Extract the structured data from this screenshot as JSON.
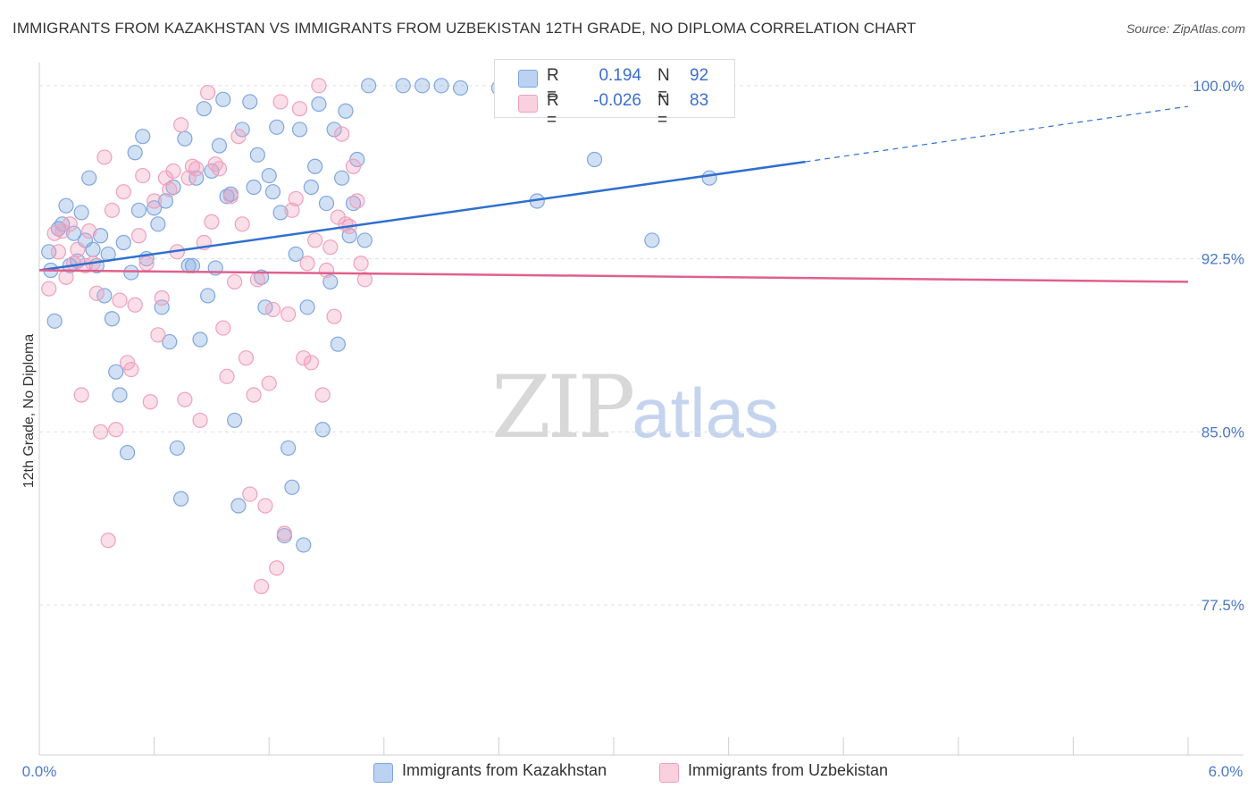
{
  "title": "IMMIGRANTS FROM KAZAKHSTAN VS IMMIGRANTS FROM UZBEKISTAN 12TH GRADE, NO DIPLOMA CORRELATION CHART",
  "source": "Source: ZipAtlas.com",
  "watermark": {
    "zip": "ZIP",
    "atlas": "atlas"
  },
  "legend": {
    "r_label": "R =",
    "n_label": "N =",
    "series1": {
      "r": "0.194",
      "n": "92"
    },
    "series2": {
      "r": "-0.026",
      "n": "83"
    }
  },
  "chart_data": {
    "type": "scatter",
    "title": "IMMIGRANTS FROM KAZAKHSTAN VS IMMIGRANTS FROM UZBEKISTAN 12TH GRADE, NO DIPLOMA CORRELATION CHART",
    "xlabel": "",
    "ylabel": "12th Grade, No Diploma",
    "xlim": [
      0.0,
      6.0
    ],
    "ylim": [
      71.0,
      101.0
    ],
    "x_tick_labels": [
      "0.0%",
      "6.0%"
    ],
    "y_ticks": [
      77.5,
      85.0,
      92.5,
      100.0
    ],
    "y_tick_labels": [
      "77.5%",
      "85.0%",
      "92.5%",
      "100.0%"
    ],
    "grid": true,
    "legend_position": "top-center and bottom",
    "colors": {
      "series1": "#7ea6e0",
      "series2": "#f0a0bc",
      "line1": "#2f6fd0",
      "line2": "#e0608c"
    },
    "series": [
      {
        "name": "Immigrants from Kazakhstan",
        "trend": {
          "x": [
            0.0,
            4.0
          ],
          "y": [
            92.0,
            96.7
          ],
          "dashed_extension": {
            "x": [
              4.0,
              6.0
            ],
            "y": [
              96.7,
              99.1
            ]
          }
        },
        "points": [
          [
            0.05,
            92.8
          ],
          [
            0.06,
            92.0
          ],
          [
            0.08,
            89.8
          ],
          [
            0.1,
            93.8
          ],
          [
            0.12,
            94.0
          ],
          [
            0.14,
            94.8
          ],
          [
            0.16,
            92.2
          ],
          [
            0.18,
            93.6
          ],
          [
            0.2,
            92.4
          ],
          [
            0.22,
            94.5
          ],
          [
            0.24,
            93.3
          ],
          [
            0.26,
            96.0
          ],
          [
            0.28,
            92.9
          ],
          [
            0.3,
            92.2
          ],
          [
            0.32,
            93.5
          ],
          [
            0.34,
            90.9
          ],
          [
            0.36,
            92.7
          ],
          [
            0.38,
            89.9
          ],
          [
            0.4,
            87.6
          ],
          [
            0.42,
            86.6
          ],
          [
            0.44,
            93.2
          ],
          [
            0.46,
            84.1
          ],
          [
            0.48,
            91.9
          ],
          [
            0.5,
            97.1
          ],
          [
            0.52,
            94.6
          ],
          [
            0.54,
            97.8
          ],
          [
            0.56,
            92.5
          ],
          [
            0.6,
            94.7
          ],
          [
            0.62,
            94.0
          ],
          [
            0.64,
            90.4
          ],
          [
            0.66,
            95.0
          ],
          [
            0.68,
            88.9
          ],
          [
            0.7,
            95.6
          ],
          [
            0.72,
            84.3
          ],
          [
            0.74,
            82.1
          ],
          [
            0.76,
            97.7
          ],
          [
            0.78,
            92.2
          ],
          [
            0.8,
            92.2
          ],
          [
            0.82,
            96.0
          ],
          [
            0.84,
            89.0
          ],
          [
            0.86,
            99.0
          ],
          [
            0.88,
            90.9
          ],
          [
            0.9,
            96.3
          ],
          [
            0.92,
            92.1
          ],
          [
            0.94,
            97.4
          ],
          [
            0.96,
            99.4
          ],
          [
            0.98,
            95.2
          ],
          [
            1.0,
            95.3
          ],
          [
            1.02,
            85.5
          ],
          [
            1.04,
            81.8
          ],
          [
            1.06,
            98.1
          ],
          [
            1.1,
            99.3
          ],
          [
            1.12,
            95.6
          ],
          [
            1.14,
            97.0
          ],
          [
            1.16,
            91.7
          ],
          [
            1.18,
            90.4
          ],
          [
            1.2,
            96.1
          ],
          [
            1.22,
            95.4
          ],
          [
            1.24,
            98.2
          ],
          [
            1.26,
            94.5
          ],
          [
            1.28,
            80.5
          ],
          [
            1.3,
            84.3
          ],
          [
            1.32,
            82.6
          ],
          [
            1.34,
            92.7
          ],
          [
            1.36,
            98.1
          ],
          [
            1.38,
            80.1
          ],
          [
            1.4,
            90.4
          ],
          [
            1.42,
            95.6
          ],
          [
            1.44,
            96.5
          ],
          [
            1.46,
            99.2
          ],
          [
            1.48,
            85.1
          ],
          [
            1.5,
            94.9
          ],
          [
            1.52,
            91.5
          ],
          [
            1.54,
            98.1
          ],
          [
            1.56,
            88.8
          ],
          [
            1.58,
            96.0
          ],
          [
            1.6,
            98.9
          ],
          [
            1.62,
            93.5
          ],
          [
            1.64,
            94.9
          ],
          [
            1.66,
            96.8
          ],
          [
            1.7,
            93.3
          ],
          [
            1.72,
            100.0
          ],
          [
            1.9,
            100.0
          ],
          [
            2.0,
            100.0
          ],
          [
            2.1,
            100.0
          ],
          [
            2.2,
            99.9
          ],
          [
            2.4,
            99.9
          ],
          [
            2.6,
            95.0
          ],
          [
            2.9,
            96.8
          ],
          [
            3.1,
            99.0
          ],
          [
            3.2,
            93.3
          ],
          [
            3.5,
            96.0
          ]
        ]
      },
      {
        "name": "Immigrants from Uzbekistan",
        "trend": {
          "x": [
            0.0,
            6.0
          ],
          "y": [
            92.0,
            91.5
          ]
        },
        "points": [
          [
            0.05,
            91.2
          ],
          [
            0.08,
            93.6
          ],
          [
            0.1,
            92.8
          ],
          [
            0.12,
            93.7
          ],
          [
            0.14,
            91.7
          ],
          [
            0.16,
            94.0
          ],
          [
            0.18,
            92.3
          ],
          [
            0.2,
            92.9
          ],
          [
            0.22,
            86.6
          ],
          [
            0.24,
            92.2
          ],
          [
            0.26,
            93.7
          ],
          [
            0.28,
            92.3
          ],
          [
            0.3,
            91.0
          ],
          [
            0.32,
            85.0
          ],
          [
            0.34,
            96.9
          ],
          [
            0.36,
            80.3
          ],
          [
            0.38,
            94.6
          ],
          [
            0.4,
            85.1
          ],
          [
            0.42,
            90.7
          ],
          [
            0.44,
            95.4
          ],
          [
            0.46,
            88.0
          ],
          [
            0.48,
            87.7
          ],
          [
            0.5,
            90.5
          ],
          [
            0.52,
            93.5
          ],
          [
            0.54,
            96.1
          ],
          [
            0.56,
            92.3
          ],
          [
            0.58,
            86.3
          ],
          [
            0.6,
            95.0
          ],
          [
            0.62,
            89.2
          ],
          [
            0.64,
            90.8
          ],
          [
            0.66,
            96.0
          ],
          [
            0.68,
            95.5
          ],
          [
            0.7,
            96.3
          ],
          [
            0.72,
            92.8
          ],
          [
            0.74,
            98.3
          ],
          [
            0.76,
            86.4
          ],
          [
            0.78,
            96.0
          ],
          [
            0.8,
            96.5
          ],
          [
            0.82,
            96.4
          ],
          [
            0.84,
            85.5
          ],
          [
            0.86,
            93.2
          ],
          [
            0.88,
            99.7
          ],
          [
            0.9,
            94.1
          ],
          [
            0.92,
            96.6
          ],
          [
            0.94,
            96.4
          ],
          [
            0.96,
            89.5
          ],
          [
            0.98,
            87.4
          ],
          [
            1.0,
            95.2
          ],
          [
            1.02,
            91.5
          ],
          [
            1.04,
            97.8
          ],
          [
            1.06,
            94.0
          ],
          [
            1.08,
            88.2
          ],
          [
            1.1,
            82.3
          ],
          [
            1.12,
            86.6
          ],
          [
            1.14,
            91.6
          ],
          [
            1.16,
            78.3
          ],
          [
            1.18,
            81.8
          ],
          [
            1.2,
            87.1
          ],
          [
            1.22,
            90.3
          ],
          [
            1.24,
            79.1
          ],
          [
            1.26,
            99.3
          ],
          [
            1.28,
            80.6
          ],
          [
            1.3,
            90.1
          ],
          [
            1.32,
            94.6
          ],
          [
            1.34,
            95.1
          ],
          [
            1.36,
            99.0
          ],
          [
            1.38,
            88.2
          ],
          [
            1.4,
            92.3
          ],
          [
            1.42,
            88.0
          ],
          [
            1.44,
            93.3
          ],
          [
            1.46,
            100.0
          ],
          [
            1.48,
            86.6
          ],
          [
            1.5,
            92.0
          ],
          [
            1.52,
            93.0
          ],
          [
            1.54,
            90.0
          ],
          [
            1.56,
            94.3
          ],
          [
            1.58,
            97.9
          ],
          [
            1.6,
            94.0
          ],
          [
            1.62,
            93.9
          ],
          [
            1.64,
            96.5
          ],
          [
            1.66,
            95.0
          ],
          [
            1.68,
            92.3
          ],
          [
            1.7,
            91.6
          ]
        ]
      }
    ]
  },
  "bottom_legend": {
    "items": [
      "Immigrants from Kazakhstan",
      "Immigrants from Uzbekistan"
    ]
  }
}
